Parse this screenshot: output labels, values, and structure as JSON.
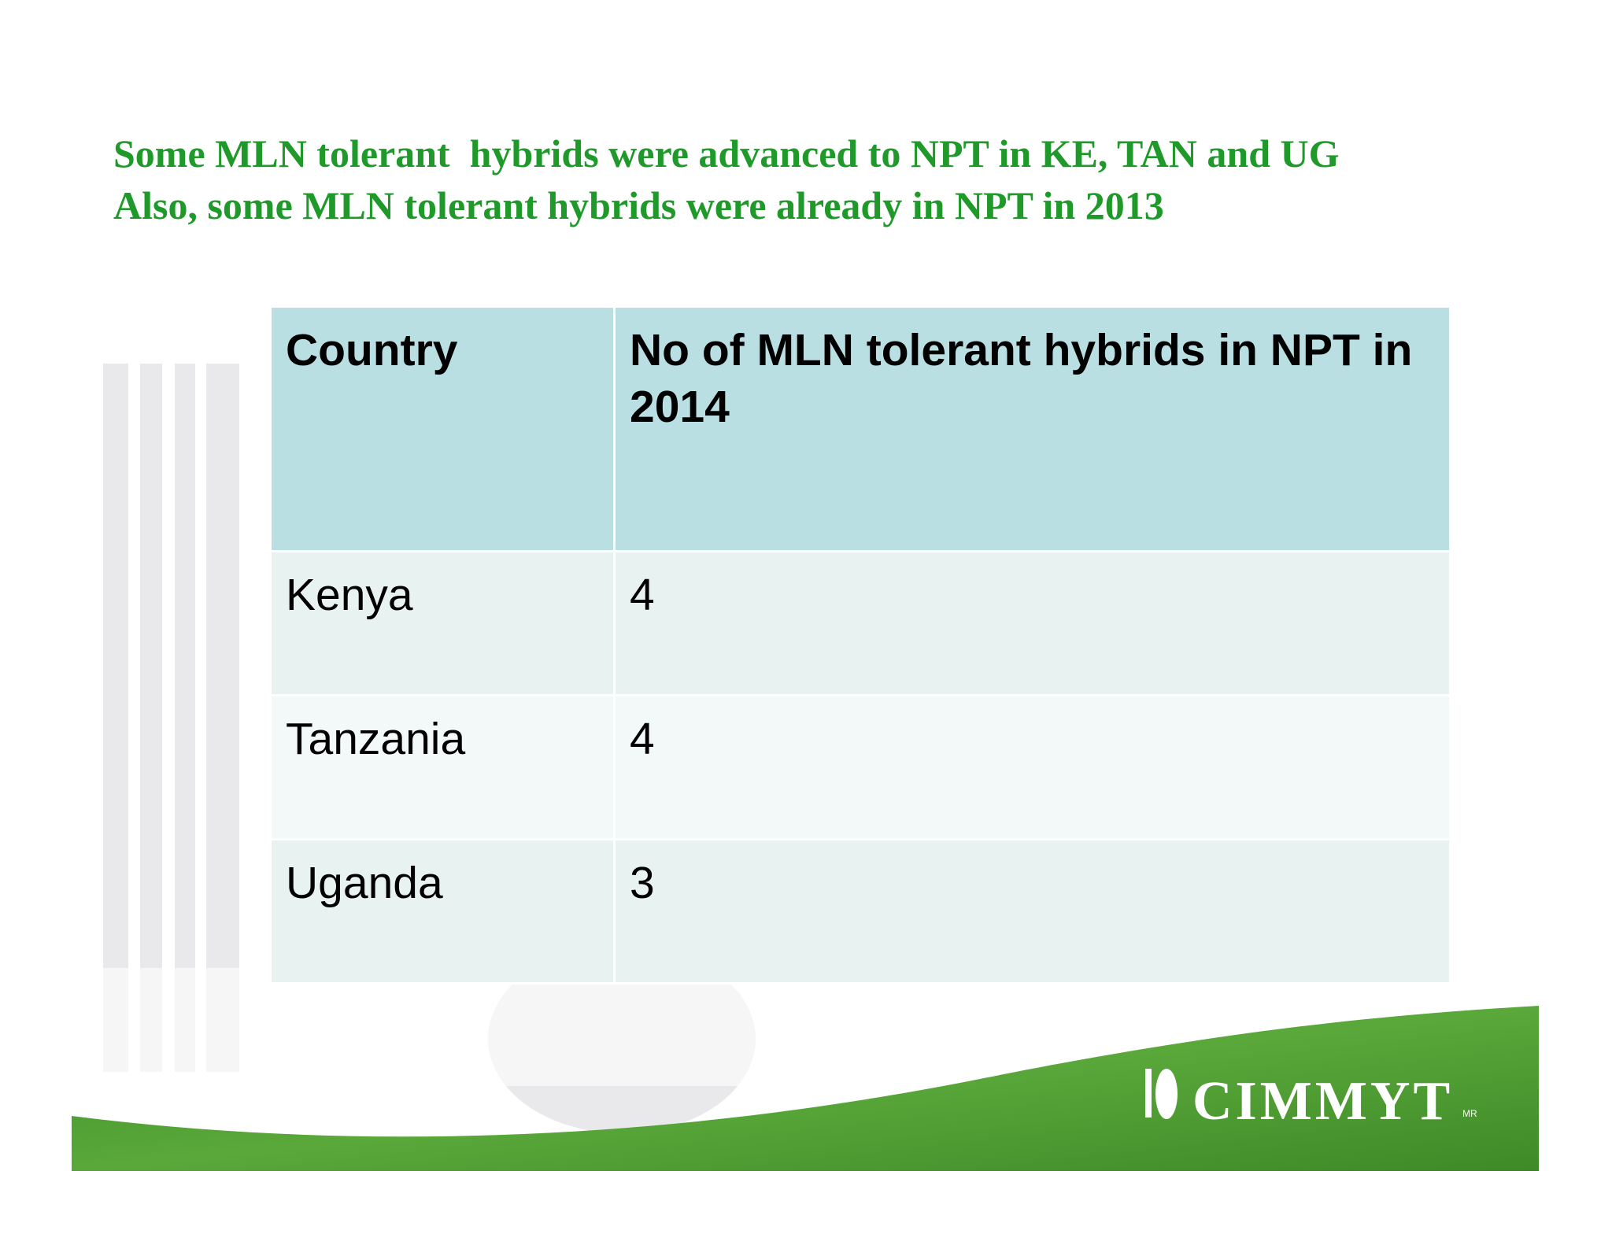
{
  "title": {
    "lines": [
      "Some MLN tolerant  hybrids were advanced to NPT in KE, TAN and UG",
      "Also, some MLN tolerant hybrids were already in NPT in 2013"
    ]
  },
  "table": {
    "header": [
      "Country",
      "No of MLN tolerant hybrids in NPT in 2014"
    ],
    "rows": [
      [
        "Kenya",
        4
      ],
      [
        "Tanzania",
        4
      ],
      [
        "Uganda",
        3
      ]
    ]
  },
  "logo": {
    "name": "CIMMYT",
    "mark": "MR"
  }
}
